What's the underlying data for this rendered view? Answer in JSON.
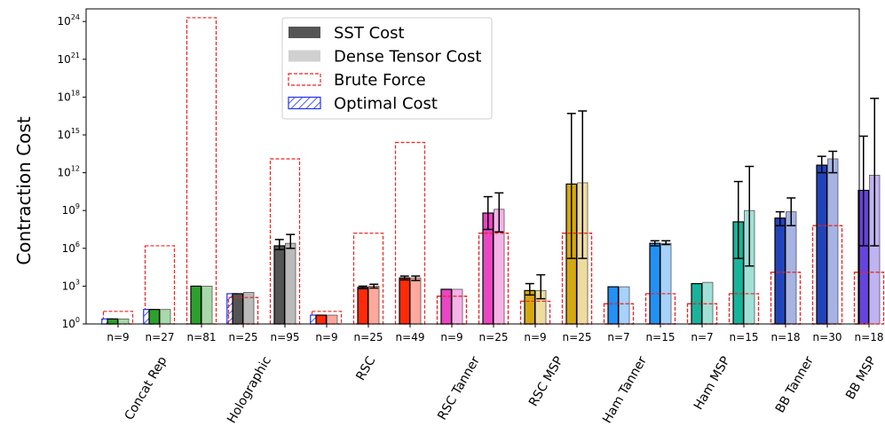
{
  "chart_data": {
    "type": "bar",
    "ylabel": "Contraction Cost",
    "yscale": "log",
    "ylim_exponents": [
      0,
      25
    ],
    "y_ticks": [
      {
        "base": "10",
        "exp": "0"
      },
      {
        "base": "10",
        "exp": "3"
      },
      {
        "base": "10",
        "exp": "6"
      },
      {
        "base": "10",
        "exp": "9"
      },
      {
        "base": "10",
        "exp": "12"
      },
      {
        "base": "10",
        "exp": "15"
      },
      {
        "base": "10",
        "exp": "18"
      },
      {
        "base": "10",
        "exp": "21"
      },
      {
        "base": "10",
        "exp": "24"
      }
    ],
    "legend": {
      "position": "top-center",
      "entries": [
        {
          "key": "sst",
          "label": "SST Cost"
        },
        {
          "key": "dense",
          "label": "Dense Tensor Cost"
        },
        {
          "key": "brute",
          "label": "Brute Force"
        },
        {
          "key": "optimal",
          "label": "Optimal Cost"
        }
      ]
    },
    "categories": [
      {
        "name": "Concat Rep",
        "color": "#2ca02c"
      },
      {
        "name": "Holographic",
        "color": "#555555"
      },
      {
        "name": "RSC",
        "color": "#ff2a0a"
      },
      {
        "name": "RSC Tanner",
        "color": "#e945c4"
      },
      {
        "name": "RSC MSP",
        "color": "#d4a811"
      },
      {
        "name": "Ham Tanner",
        "color": "#2390f5"
      },
      {
        "name": "Ham MSP",
        "color": "#18b49a"
      },
      {
        "name": "BB Tanner",
        "color": "#2244bb"
      },
      {
        "name": "BB MSP",
        "color": "#6644dd"
      }
    ],
    "groups": [
      {
        "label": "n=9",
        "cat": 0,
        "sst": 0.4,
        "dense": 0.4,
        "brute": 1.0,
        "optimal": 0.4,
        "sst_err": null,
        "dense_err": null
      },
      {
        "label": "n=27",
        "cat": 0,
        "sst": 1.15,
        "dense": 1.15,
        "brute": 6.2,
        "optimal": 1.15,
        "sst_err": null,
        "dense_err": null
      },
      {
        "label": "n=81",
        "cat": 0,
        "sst": 3.0,
        "dense": 3.0,
        "brute": 24.3,
        "optimal": null,
        "sst_err": null,
        "dense_err": null
      },
      {
        "label": "n=25",
        "cat": 1,
        "sst": 2.4,
        "dense": 2.5,
        "brute": 2.1,
        "optimal": 2.4,
        "sst_err": null,
        "dense_err": null
      },
      {
        "label": "n=95",
        "cat": 1,
        "sst": 6.2,
        "dense": 6.4,
        "brute": 13.1,
        "optimal": null,
        "sst_err": [
          5.9,
          6.7
        ],
        "dense_err": [
          6.0,
          7.1
        ]
      },
      {
        "label": "n=9",
        "cat": 2,
        "sst": 0.7,
        "dense": 0.7,
        "brute": 1.0,
        "optimal": 0.7,
        "sst_err": null,
        "dense_err": null
      },
      {
        "label": "n=25",
        "cat": 2,
        "sst": 2.9,
        "dense": 3.0,
        "brute": 7.2,
        "optimal": null,
        "sst_err": [
          2.8,
          3.0
        ],
        "dense_err": [
          2.85,
          3.15
        ]
      },
      {
        "label": "n=49",
        "cat": 2,
        "sst": 3.65,
        "dense": 3.65,
        "brute": 14.4,
        "optimal": null,
        "sst_err": [
          3.5,
          3.8
        ],
        "dense_err": [
          3.45,
          3.8
        ]
      },
      {
        "label": "n=9",
        "cat": 3,
        "sst": 2.75,
        "dense": 2.75,
        "brute": 2.2,
        "optimal": null,
        "sst_err": null,
        "dense_err": null
      },
      {
        "label": "n=25",
        "cat": 3,
        "sst": 8.8,
        "dense": 9.1,
        "brute": 7.2,
        "optimal": null,
        "sst_err": [
          7.5,
          10.1
        ],
        "dense_err": [
          7.3,
          10.4
        ]
      },
      {
        "label": "n=9",
        "cat": 4,
        "sst": 2.65,
        "dense": 2.65,
        "brute": 1.8,
        "optimal": null,
        "sst_err": [
          2.3,
          3.2
        ],
        "dense_err": [
          2.0,
          3.9
        ]
      },
      {
        "label": "n=25",
        "cat": 4,
        "sst": 11.1,
        "dense": 11.2,
        "brute": 7.2,
        "optimal": null,
        "sst_err": [
          5.2,
          16.7
        ],
        "dense_err": [
          5.2,
          16.9
        ]
      },
      {
        "label": "n=7",
        "cat": 5,
        "sst": 2.95,
        "dense": 2.95,
        "brute": 1.6,
        "optimal": null,
        "sst_err": null,
        "dense_err": null
      },
      {
        "label": "n=15",
        "cat": 5,
        "sst": 6.4,
        "dense": 6.4,
        "brute": 2.4,
        "optimal": null,
        "sst_err": [
          6.2,
          6.6
        ],
        "dense_err": [
          6.3,
          6.6
        ]
      },
      {
        "label": "n=7",
        "cat": 6,
        "sst": 3.2,
        "dense": 3.3,
        "brute": 1.6,
        "optimal": null,
        "sst_err": null,
        "dense_err": null
      },
      {
        "label": "n=15",
        "cat": 6,
        "sst": 8.1,
        "dense": 9.0,
        "brute": 2.4,
        "optimal": null,
        "sst_err": [
          5.2,
          11.3
        ],
        "dense_err": [
          4.6,
          12.5
        ]
      },
      {
        "label": "n=18",
        "cat": 7,
        "sst": 8.4,
        "dense": 8.9,
        "brute": 4.1,
        "optimal": null,
        "sst_err": [
          7.8,
          8.9
        ],
        "dense_err": [
          7.8,
          10.0
        ]
      },
      {
        "label": "n=30",
        "cat": 7,
        "sst": 12.6,
        "dense": 13.1,
        "brute": 7.8,
        "optimal": null,
        "sst_err": [
          12.0,
          13.3
        ],
        "dense_err": [
          12.0,
          13.7
        ]
      },
      {
        "label": "n=18",
        "cat": 8,
        "sst": 10.6,
        "dense": 11.8,
        "brute": 4.1,
        "optimal": null,
        "sst_err": [
          6.2,
          14.9
        ],
        "dense_err": [
          6.2,
          17.9
        ]
      }
    ],
    "category_spans": [
      [
        0,
        2
      ],
      [
        3,
        4
      ],
      [
        5,
        7
      ],
      [
        8,
        9
      ],
      [
        10,
        11
      ],
      [
        12,
        13
      ],
      [
        14,
        15
      ],
      [
        16,
        17
      ],
      [
        18,
        18
      ]
    ]
  }
}
